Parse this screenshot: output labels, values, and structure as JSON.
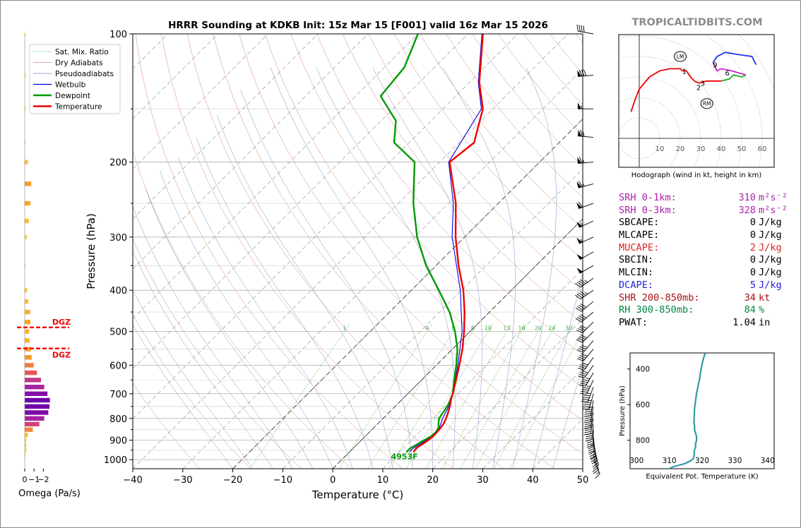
{
  "title": "HRRR Sounding at KDKB Init: 15z Mar 15 [F001] valid 16z Mar 15 2026",
  "watermark": "TROPICALTIDBITS.COM",
  "colors": {
    "temperature": "#ee0000",
    "dewpoint": "#009900",
    "wetbulb": "#0000dd",
    "dgz": "#ee0000",
    "srh": "#aa22aa",
    "mucape": "#dd2222",
    "dcape": "#2222dd",
    "shr": "#aa1111",
    "rh": "#008844",
    "theta_e": "#3399aa"
  },
  "skewt": {
    "xlabel": "Temperature (°C)",
    "ylabel": "Pressure (hPa)",
    "xlim": [
      -40,
      50
    ],
    "ylim": [
      1050,
      100
    ],
    "x_ticks": [
      "−40",
      "−30",
      "−20",
      "−10",
      "0",
      "10",
      "20",
      "30",
      "40",
      "50"
    ],
    "p_ticks": [
      "100",
      "200",
      "300",
      "400",
      "500",
      "600",
      "700",
      "800",
      "900",
      "1000"
    ],
    "legend": [
      "Sat. Mix. Ratio",
      "Dry Adiabats",
      "Pseudoadiabats",
      "Wetbulb",
      "Dewpoint",
      "Temperature"
    ],
    "mixing_ratio_labels": [
      "1",
      "4",
      "6",
      "8",
      "10",
      "13",
      "16",
      "20",
      "24",
      "30",
      "36"
    ],
    "surface_label": "4953F"
  },
  "chart_data": [
    {
      "type": "line",
      "title": "HRRR Sounding at KDKB Init: 15z Mar 15 [F001] valid 16z Mar 15 2026",
      "xlabel": "Temperature (°C)",
      "ylabel": "Pressure (hPa)",
      "xlim": [
        -40,
        50
      ],
      "ylim": [
        1050,
        100
      ],
      "grid": true,
      "legend_position": "top-left",
      "series": [
        {
          "name": "Temperature",
          "p": [
            960,
            940,
            920,
            900,
            880,
            860,
            840,
            820,
            800,
            780,
            760,
            740,
            720,
            700,
            650,
            600,
            550,
            500,
            450,
            400,
            350,
            300,
            250,
            200,
            180,
            150,
            130,
            100
          ],
          "t": [
            12.8,
            12.6,
            13.0,
            13.4,
            13.6,
            13.5,
            13.4,
            13.1,
            12.6,
            12.0,
            11.3,
            10.6,
            9.7,
            9.0,
            6.9,
            4.6,
            2.0,
            -1.2,
            -5.0,
            -9.6,
            -15.5,
            -21.8,
            -28.5,
            -38.0,
            -37.0,
            -42.0,
            -48.0,
            -57.0
          ]
        },
        {
          "name": "Dewpoint",
          "p": [
            960,
            940,
            920,
            900,
            880,
            860,
            840,
            820,
            800,
            780,
            760,
            740,
            720,
            700,
            650,
            600,
            550,
            500,
            450,
            400,
            350,
            300,
            250,
            230,
            200,
            180,
            160,
            140,
            120,
            100
          ],
          "t": [
            11.4,
            11.4,
            12.0,
            12.6,
            13.2,
            13.3,
            12.9,
            12.0,
            11.2,
            10.9,
            10.6,
            10.2,
            9.6,
            9.0,
            6.5,
            4.0,
            1.0,
            -3.0,
            -8.0,
            -14.5,
            -22.0,
            -29.5,
            -37.0,
            -40.0,
            -45.0,
            -53.0,
            -57.0,
            -65.0,
            -66.0,
            -70.0
          ]
        },
        {
          "name": "Wetbulb",
          "p": [
            960,
            940,
            920,
            900,
            880,
            860,
            840,
            820,
            800,
            760,
            700,
            600,
            500,
            400,
            300,
            250,
            200,
            150,
            130,
            100
          ],
          "t": [
            12.0,
            12.0,
            12.5,
            13.0,
            13.4,
            13.4,
            13.1,
            12.5,
            11.9,
            11.0,
            9.0,
            4.3,
            -1.6,
            -10.2,
            -22.5,
            -29.0,
            -38.2,
            -42.3,
            -48.2,
            -57.2
          ]
        }
      ]
    },
    {
      "type": "bar",
      "xlabel": "Omega (Pa/s)",
      "x_ticks": [
        "0",
        "−1",
        "−2"
      ],
      "dgz_label": "DGZ",
      "dgz_pressures": [
        489,
        548
      ],
      "p": [
        100,
        125,
        150,
        180,
        200,
        225,
        250,
        275,
        300,
        350,
        400,
        425,
        450,
        475,
        500,
        525,
        550,
        575,
        600,
        625,
        650,
        675,
        700,
        725,
        750,
        775,
        800,
        825,
        850,
        875,
        900,
        925,
        950,
        975
      ],
      "omega": [
        -0.02,
        -0.02,
        -0.03,
        -0.02,
        -0.4,
        -0.8,
        -0.7,
        -0.5,
        -0.25,
        -0.05,
        -0.3,
        -0.45,
        -0.65,
        -0.7,
        -0.55,
        -0.6,
        -0.75,
        -0.85,
        -1.1,
        -1.5,
        -2.0,
        -2.4,
        -2.8,
        -3.1,
        -3.05,
        -2.9,
        -2.4,
        -1.8,
        -1.0,
        -0.4,
        -0.2,
        -0.2,
        -0.2,
        -0.05
      ]
    },
    {
      "type": "line",
      "title": "Hodograph (wind in kt, height in km)",
      "ring_labels": [
        "10",
        "20",
        "30",
        "40",
        "50",
        "60"
      ],
      "u": [
        -4,
        -2,
        0,
        5,
        10,
        15,
        20,
        21,
        23,
        25,
        27,
        29,
        33,
        37,
        40,
        44,
        46,
        50,
        52,
        45,
        40,
        38,
        36,
        38,
        42,
        48,
        55,
        57
      ],
      "v": [
        13,
        19,
        24,
        30,
        33,
        34,
        34,
        33,
        33,
        30,
        28,
        27,
        28,
        28,
        28,
        29,
        31,
        30,
        31,
        33,
        34,
        33,
        37,
        40,
        42,
        41,
        40,
        36
      ],
      "height_labels": [
        {
          "km": "1",
          "u": 22,
          "v": 33
        },
        {
          "km": "2",
          "u": 29,
          "v": 25
        },
        {
          "km": "3",
          "u": 31,
          "v": 27
        },
        {
          "km": "6",
          "u": 43,
          "v": 32
        },
        {
          "km": "9",
          "u": 37,
          "v": 36
        }
      ],
      "storm_motion": [
        {
          "label": "LM",
          "u": 20,
          "v": 40
        },
        {
          "label": "RM",
          "u": 33,
          "v": 17
        }
      ]
    },
    {
      "type": "line",
      "xlabel": "Equivalent Pot. Temperature (K)",
      "ylabel": "Pressure (hPa)",
      "x_ticks": [
        "300",
        "310",
        "320",
        "330",
        "340"
      ],
      "y_ticks": [
        "400",
        "600",
        "800"
      ],
      "xlim": [
        298,
        342
      ],
      "ylim": [
        960,
        310
      ],
      "p": [
        960,
        950,
        940,
        930,
        920,
        910,
        900,
        880,
        860,
        840,
        820,
        800,
        780,
        760,
        740,
        720,
        700,
        660,
        620,
        580,
        540,
        500,
        460,
        420,
        380,
        340,
        310
      ],
      "theta_e": [
        310,
        311,
        313,
        315,
        316,
        317,
        317.4,
        317.6,
        317.6,
        318,
        318,
        318.3,
        318.3,
        318,
        317.7,
        317.7,
        317.5,
        317.6,
        317.7,
        318,
        318.3,
        318.7,
        319.2,
        319.5,
        319.9,
        320.4,
        321
      ]
    }
  ],
  "indices": [
    {
      "label": "SRH 0-1km:",
      "value": "310",
      "unit": "m²s⁻²",
      "color": "#aa22aa"
    },
    {
      "label": "SRH 0-3km:",
      "value": "328",
      "unit": "m²s⁻²",
      "color": "#aa22aa"
    },
    {
      "label": "SBCAPE:",
      "value": "0",
      "unit": "J/kg",
      "color": "#000000"
    },
    {
      "label": "MLCAPE:",
      "value": "0",
      "unit": "J/kg",
      "color": "#000000"
    },
    {
      "label": "MUCAPE:",
      "value": "2",
      "unit": "J/kg",
      "color": "#dd2222"
    },
    {
      "label": "SBCIN:",
      "value": "0",
      "unit": "J/kg",
      "color": "#000000"
    },
    {
      "label": "MLCIN:",
      "value": "0",
      "unit": "J/kg",
      "color": "#000000"
    },
    {
      "label": "DCAPE:",
      "value": "5",
      "unit": "J/kg",
      "color": "#2222dd"
    },
    {
      "label": "SHR 200-850mb:",
      "value": "34",
      "unit": "kt",
      "color": "#aa1111"
    },
    {
      "label": "RH 300-850mb:",
      "value": "84",
      "unit": "%",
      "color": "#008844"
    },
    {
      "label": "PWAT:",
      "value": "1.04",
      "unit": "in",
      "color": "#000000"
    }
  ],
  "wind_barbs": {
    "p": [
      100,
      125,
      150,
      175,
      200,
      225,
      250,
      275,
      300,
      325,
      350,
      375,
      400,
      425,
      450,
      475,
      500,
      525,
      550,
      575,
      600,
      625,
      650,
      675,
      700,
      725,
      750,
      775,
      800,
      825,
      850,
      875,
      900,
      925,
      950,
      975,
      1000
    ],
    "dir": [
      280,
      265,
      270,
      275,
      265,
      255,
      250,
      245,
      245,
      240,
      240,
      235,
      235,
      230,
      230,
      225,
      225,
      220,
      220,
      215,
      215,
      210,
      205,
      200,
      195,
      190,
      190,
      190,
      190,
      185,
      180,
      175,
      170,
      165,
      160,
      160,
      155
    ],
    "spd": [
      40,
      80,
      55,
      70,
      65,
      65,
      60,
      55,
      55,
      50,
      50,
      45,
      45,
      40,
      40,
      40,
      40,
      40,
      40,
      40,
      40,
      45,
      45,
      45,
      45,
      45,
      45,
      45,
      45,
      40,
      40,
      35,
      30,
      30,
      25,
      20,
      15
    ]
  }
}
